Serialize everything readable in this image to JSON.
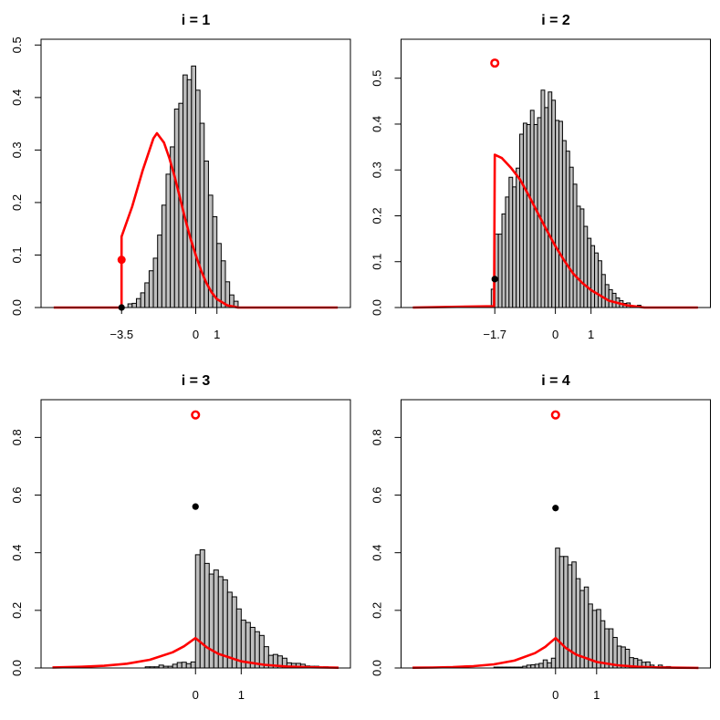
{
  "colors": {
    "curve": "#ff0000",
    "bar_fill": "#bebebe",
    "bar_stroke": "#000000",
    "point_black": "#000000"
  },
  "chart_data": [
    {
      "type": "bar",
      "title": "i = 1",
      "xlim": [
        -7.3,
        7.3
      ],
      "ylim": [
        0,
        0.511
      ],
      "xticks": [
        -3.5,
        0,
        1
      ],
      "xtick_labels": [
        "−3.5",
        "0",
        "1"
      ],
      "yticks": [
        0,
        0.1,
        0.2,
        0.3,
        0.4,
        0.5
      ],
      "ytick_labels": [
        "0.0",
        "0.1",
        "0.2",
        "0.3",
        "0.4",
        "0.5"
      ],
      "histogram": {
        "start": -3.2,
        "binwidth": 0.2,
        "heights": [
          0.007,
          0.008,
          0.017,
          0.028,
          0.047,
          0.07,
          0.094,
          0.138,
          0.195,
          0.254,
          0.306,
          0.378,
          0.389,
          0.443,
          0.434,
          0.46,
          0.414,
          0.351,
          0.279,
          0.214,
          0.173,
          0.122,
          0.089,
          0.049,
          0.024,
          0.012
        ]
      },
      "curve": {
        "x": [
          -6.7,
          -3.5,
          -3.5,
          -3.0,
          -2.5,
          -2.0,
          -1.83,
          -1.5,
          -1.25,
          -1.0,
          -0.75,
          -0.5,
          -0.25,
          0,
          0.25,
          0.5,
          0.75,
          1.0,
          1.5,
          2.0,
          6.7
        ],
        "y": [
          0,
          0,
          0.135,
          0.192,
          0.262,
          0.322,
          0.332,
          0.314,
          0.285,
          0.25,
          0.21,
          0.169,
          0.132,
          0.1,
          0.071,
          0.047,
          0.029,
          0.016,
          0.004,
          0,
          0
        ]
      },
      "red_point": {
        "x": -3.5,
        "y": 0.091,
        "style": "filled"
      },
      "black_point": {
        "x": -3.5,
        "y": 0.0
      }
    },
    {
      "type": "bar",
      "title": "i = 2",
      "xlim": [
        -4.33,
        4.35
      ],
      "ylim": [
        0,
        0.585
      ],
      "xticks": [
        -1.7,
        0,
        1
      ],
      "xtick_labels": [
        "−1.7",
        "0",
        "1"
      ],
      "yticks": [
        0,
        0.1,
        0.2,
        0.3,
        0.4,
        0.5
      ],
      "ytick_labels": [
        "0.0",
        "0.1",
        "0.2",
        "0.3",
        "0.4",
        "0.5"
      ],
      "histogram": {
        "start": -1.8,
        "binwidth": 0.1,
        "heights": [
          0.04,
          0.16,
          0.16,
          0.204,
          0.241,
          0.284,
          0.263,
          0.304,
          0.378,
          0.402,
          0.399,
          0.43,
          0.399,
          0.414,
          0.474,
          0.436,
          0.47,
          0.452,
          0.408,
          0.406,
          0.364,
          0.341,
          0.306,
          0.269,
          0.221,
          0.215,
          0.177,
          0.151,
          0.135,
          0.119,
          0.102,
          0.072,
          0.05,
          0.039,
          0.031,
          0.021,
          0.015,
          0.009,
          0.01,
          0.003,
          0,
          0.005
        ]
      },
      "curve": {
        "x": [
          -4,
          -1.72,
          -1.7,
          -1.5,
          -1.25,
          -1.0,
          -0.75,
          -0.5,
          -0.25,
          0,
          0.25,
          0.5,
          0.75,
          1.0,
          1.5,
          2.0,
          2.5,
          4
        ],
        "y": [
          0,
          0.003,
          0.333,
          0.326,
          0.305,
          0.28,
          0.245,
          0.207,
          0.17,
          0.134,
          0.102,
          0.074,
          0.054,
          0.038,
          0.015,
          0.005,
          0,
          0
        ]
      },
      "red_point": {
        "x": -1.7,
        "y": 0.533,
        "style": "open"
      },
      "black_point": {
        "x": -1.7,
        "y": 0.062
      }
    },
    {
      "type": "bar",
      "title": "i = 3",
      "xlim": [
        -3.38,
        3.39
      ],
      "ylim": [
        0,
        0.931
      ],
      "xticks": [
        0,
        1
      ],
      "xtick_labels": [
        "0",
        "1"
      ],
      "yticks": [
        0,
        0.2,
        0.4,
        0.6,
        0.8
      ],
      "ytick_labels": [
        "0.0",
        "0.2",
        "0.4",
        "0.6",
        "0.8"
      ],
      "histogram": {
        "start": -1.1,
        "binwidth": 0.1,
        "heights": [
          0.004,
          0.004,
          0.004,
          0.01,
          0.006,
          0.006,
          0.013,
          0.019,
          0.02,
          0.015,
          0.021,
          0.393,
          0.41,
          0.363,
          0.326,
          0.34,
          0.317,
          0.306,
          0.263,
          0.247,
          0.205,
          0.166,
          0.158,
          0.141,
          0.126,
          0.113,
          0.074,
          0.044,
          0.047,
          0.042,
          0.034,
          0.018,
          0.016,
          0.016,
          0.013,
          0.007,
          0.006,
          0.006,
          0,
          0.004
        ]
      },
      "curve": {
        "x": [
          -3.13,
          -3,
          -2.5,
          -2,
          -1.5,
          -1,
          -0.5,
          -0.25,
          0,
          0.25,
          0.5,
          1,
          1.5,
          2,
          2.5,
          3,
          3.13
        ],
        "y": [
          0.0018,
          0.0021,
          0.004,
          0.0077,
          0.0148,
          0.0284,
          0.0545,
          0.0753,
          0.104,
          0.0713,
          0.049,
          0.0232,
          0.011,
          0.0052,
          0.0024,
          0.0012,
          0.001
        ]
      },
      "red_point": {
        "x": 0,
        "y": 0.878,
        "style": "open"
      },
      "black_point": {
        "x": 0,
        "y": 0.56
      }
    },
    {
      "type": "bar",
      "title": "i = 4",
      "xlim": [
        -3.76,
        3.77
      ],
      "ylim": [
        0,
        0.931
      ],
      "xticks": [
        0,
        1
      ],
      "xtick_labels": [
        "0",
        "1"
      ],
      "yticks": [
        0,
        0.2,
        0.4,
        0.6,
        0.8
      ],
      "ytick_labels": [
        "0.0",
        "0.2",
        "0.4",
        "0.6",
        "0.8"
      ],
      "histogram": {
        "start": -1.5,
        "binwidth": 0.1,
        "heights": [
          0.003,
          0.003,
          0.003,
          0.003,
          0.003,
          0.003,
          0.003,
          0.006,
          0.01,
          0.011,
          0.013,
          0.016,
          0.028,
          0.018,
          0.034,
          0.416,
          0.387,
          0.387,
          0.358,
          0.368,
          0.31,
          0.269,
          0.281,
          0.222,
          0.2,
          0.203,
          0.164,
          0.136,
          0.136,
          0.106,
          0.076,
          0.073,
          0.065,
          0.036,
          0.033,
          0.028,
          0.02,
          0.021,
          0.01,
          0.002,
          0.01,
          0.004,
          0.005,
          0.002,
          0.002,
          0.002
        ]
      },
      "curve": {
        "x": [
          -3.48,
          -3,
          -2.5,
          -2,
          -1.5,
          -1,
          -0.5,
          -0.25,
          0,
          0.25,
          0.5,
          1,
          1.5,
          2,
          2.5,
          3,
          3.48
        ],
        "y": [
          0.0008,
          0.0016,
          0.0031,
          0.0063,
          0.0127,
          0.0257,
          0.0516,
          0.0732,
          0.104,
          0.0697,
          0.0467,
          0.021,
          0.0094,
          0.0042,
          0.0019,
          0.0009,
          0.0004
        ]
      },
      "red_point": {
        "x": 0,
        "y": 0.878,
        "style": "open"
      },
      "black_point": {
        "x": 0,
        "y": 0.555
      }
    }
  ]
}
